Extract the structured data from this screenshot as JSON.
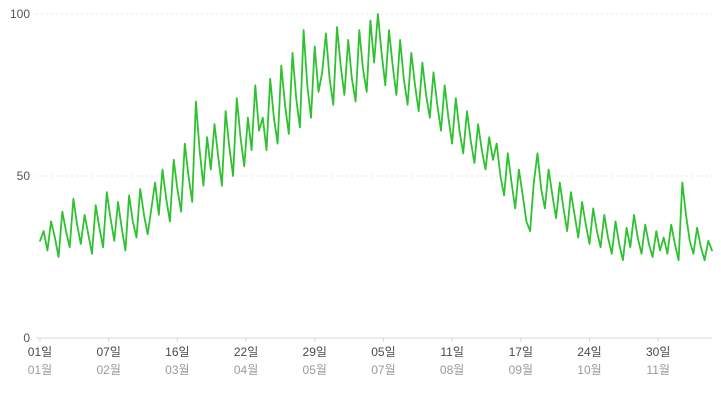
{
  "chart": {
    "background": "#ffffff",
    "line_color": "#2fc230",
    "grid_color": "#e6e6e6",
    "axis_color": "#d9d9d9",
    "ytick_color": "#555555",
    "day_label_color": "#4a4a4a",
    "month_label_color": "#9b9b9b"
  },
  "chart_data": {
    "type": "line",
    "title": "",
    "xlabel": "",
    "ylabel": "",
    "ylim": [
      0,
      100
    ],
    "yticks": [
      0,
      50,
      100
    ],
    "grid": "horizontal-dashed",
    "legend": "none",
    "total_days": 362,
    "sample_interval_days": 2,
    "x_tick_labels": [
      {
        "day": "01일",
        "month": "01월",
        "day_index": 0
      },
      {
        "day": "07일",
        "month": "02월",
        "day_index": 37
      },
      {
        "day": "16일",
        "month": "03월",
        "day_index": 74
      },
      {
        "day": "22일",
        "month": "04월",
        "day_index": 111
      },
      {
        "day": "29일",
        "month": "05월",
        "day_index": 148
      },
      {
        "day": "05일",
        "month": "07월",
        "day_index": 185
      },
      {
        "day": "11일",
        "month": "08월",
        "day_index": 222
      },
      {
        "day": "17일",
        "month": "09월",
        "day_index": 259
      },
      {
        "day": "24일",
        "month": "10월",
        "day_index": 296
      },
      {
        "day": "30일",
        "month": "11월",
        "day_index": 333
      }
    ],
    "values": [
      30,
      33,
      27,
      36,
      31,
      25,
      39,
      33,
      28,
      43,
      35,
      29,
      38,
      32,
      26,
      41,
      34,
      28,
      45,
      37,
      30,
      42,
      34,
      27,
      44,
      36,
      31,
      46,
      38,
      32,
      40,
      48,
      38,
      52,
      43,
      36,
      55,
      46,
      39,
      60,
      50,
      42,
      73,
      58,
      47,
      62,
      52,
      66,
      56,
      47,
      70,
      59,
      50,
      74,
      62,
      53,
      68,
      58,
      78,
      64,
      68,
      58,
      80,
      68,
      60,
      84,
      72,
      63,
      88,
      74,
      65,
      95,
      78,
      68,
      90,
      76,
      82,
      94,
      80,
      72,
      96,
      84,
      75,
      92,
      80,
      73,
      95,
      83,
      76,
      98,
      85,
      100,
      88,
      78,
      95,
      84,
      75,
      92,
      80,
      72,
      88,
      78,
      70,
      85,
      75,
      68,
      82,
      72,
      64,
      78,
      68,
      60,
      74,
      64,
      57,
      70,
      61,
      54,
      66,
      58,
      52,
      62,
      55,
      60,
      50,
      44,
      57,
      48,
      40,
      52,
      44,
      36,
      33,
      48,
      57,
      46,
      40,
      52,
      44,
      37,
      48,
      40,
      33,
      45,
      38,
      31,
      42,
      35,
      29,
      40,
      33,
      28,
      38,
      31,
      26,
      36,
      29,
      24,
      34,
      28,
      38,
      31,
      26,
      35,
      29,
      25,
      33,
      27,
      31,
      26,
      35,
      29,
      24,
      48,
      38,
      30,
      26,
      34,
      28,
      24,
      30,
      27
    ]
  }
}
